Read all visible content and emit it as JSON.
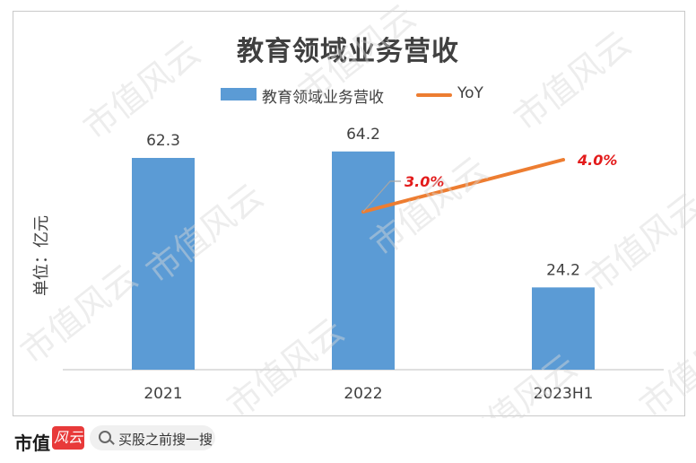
{
  "chart_data": {
    "type": "bar",
    "title": "教育领域业务营收",
    "ylabel": "单位：亿元",
    "categories": [
      "2021",
      "2022",
      "2023H1"
    ],
    "series": [
      {
        "name": "教育领域业务营收",
        "type": "bar",
        "color": "#5b9bd5",
        "values": [
          62.3,
          64.2,
          24.2
        ],
        "labels": [
          "62.3",
          "64.2",
          "24.2"
        ]
      },
      {
        "name": "YoY",
        "type": "line",
        "color": "#ed7d31",
        "values": [
          null,
          3.0,
          4.0
        ],
        "labels": [
          "",
          "3.0%",
          "4.0%"
        ]
      }
    ],
    "ylim": [
      0,
      70
    ],
    "legend": "top-center",
    "grid": false
  },
  "watermark": {
    "text": "市值风云"
  },
  "footer": {
    "brand": "市值",
    "brand_mark": "风云",
    "search_text": "买股之前搜一搜"
  }
}
